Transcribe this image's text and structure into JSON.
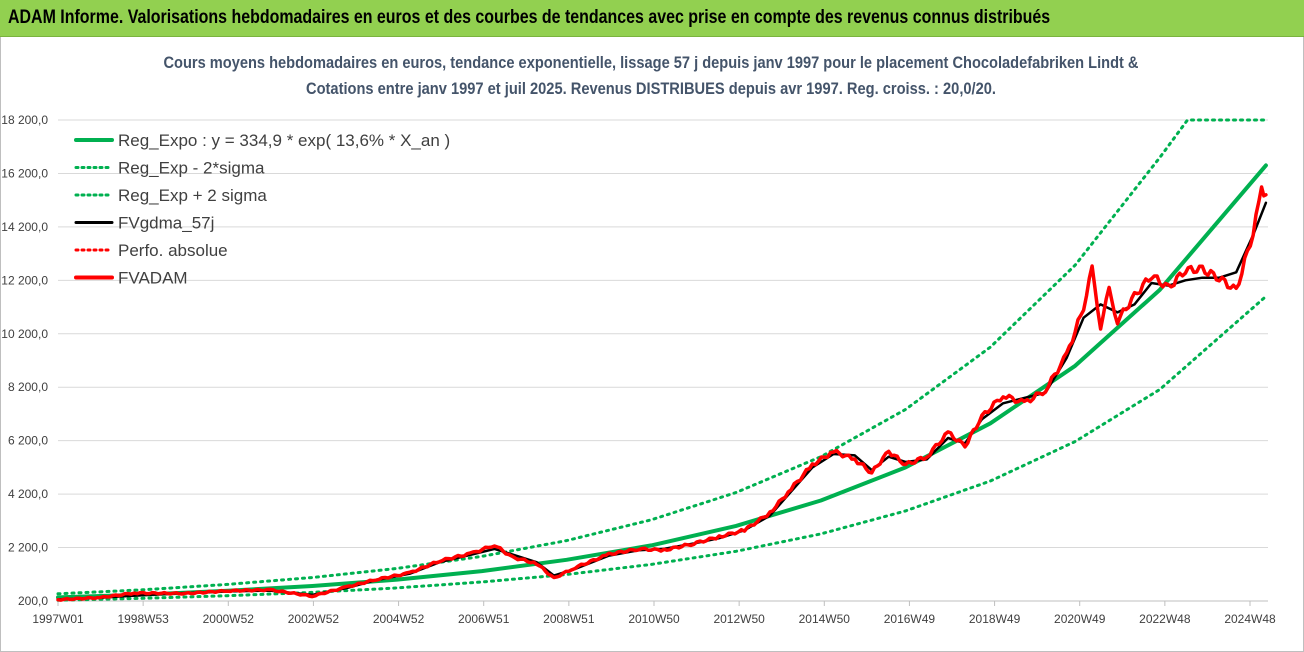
{
  "header": {
    "title": "ADAM Informe. Valorisations hebdomadaires en euros et des courbes de tendances avec prise en compte des revenus connus distribués"
  },
  "colors": {
    "banner": "#92d050",
    "regression": "#00b050",
    "sigma_bands": "#00b050",
    "fvgdma": "#000000",
    "fvadam": "#ff0000",
    "perfo": "#ff0000"
  },
  "chart_data": {
    "type": "line",
    "subtitle_line1": "Cours moyens hebdomadaires en euros, tendance exponentielle, lissage 57 j depuis janv 1997  pour le placement Chocoladefabriken Lindt &",
    "subtitle_line2": "Cotations entre janv 1997 et juil 2025. Revenus DISTRIBUES depuis avr 1997. Reg. croiss. : 20,0/20.",
    "y_ticks": [
      "200,0",
      "2 200,0",
      "4 200,0",
      "6 200,0",
      "8 200,0",
      "10 200,0",
      "12 200,0",
      "14 200,0",
      "16 200,0",
      "18 200,0"
    ],
    "x_ticks": [
      "1997W01",
      "1998W53",
      "2000W52",
      "2002W52",
      "2004W52",
      "2006W51",
      "2008W51",
      "2010W50",
      "2012W50",
      "2014W50",
      "2016W49",
      "2018W49",
      "2020W49",
      "2022W48",
      "2024W48"
    ],
    "ylim": [
      200,
      18200
    ],
    "x_range_years": [
      1997.0,
      2025.55
    ],
    "grid": "horizontal",
    "legend_position": "top-left",
    "legend": [
      {
        "label": "Reg_Expo : y = 334,9 * exp( 13,6% *  X_an )",
        "style": "solid-thick",
        "color": "#00b050"
      },
      {
        "label": "Reg_Exp - 2*sigma",
        "style": "dotted",
        "color": "#00b050"
      },
      {
        "label": "Reg_Exp + 2 sigma",
        "style": "dotted",
        "color": "#00b050"
      },
      {
        "label": "FVgdma_57j",
        "style": "solid",
        "color": "#000000"
      },
      {
        "label": "Perfo. absolue",
        "style": "dotted",
        "color": "#ff0000"
      },
      {
        "label": "FVADAM",
        "style": "solid-thick",
        "color": "#ff0000"
      }
    ],
    "series": [
      {
        "name": "Reg_Expo : y = 334,9 * exp( 13,6% *  X_an )",
        "x": [
          1997,
          1999,
          2001,
          2003,
          2005,
          2007,
          2009,
          2011,
          2013,
          2015,
          2017,
          2019,
          2021,
          2023,
          2025.5
        ],
        "values": [
          335,
          440,
          580,
          760,
          1000,
          1320,
          1740,
          2280,
          3010,
          3960,
          5200,
          6850,
          9000,
          11850,
          16500
        ]
      },
      {
        "name": "Reg_Exp - 2*sigma",
        "x": [
          1997,
          1999,
          2001,
          2003,
          2005,
          2007,
          2009,
          2011,
          2013,
          2015,
          2017,
          2019,
          2021,
          2023,
          2025.5
        ],
        "values": [
          230,
          300,
          400,
          520,
          690,
          910,
          1190,
          1570,
          2060,
          2710,
          3570,
          4690,
          6170,
          8120,
          11600
        ]
      },
      {
        "name": "Reg_Exp + 2 sigma",
        "x": [
          1997,
          1999,
          2001,
          2003,
          2005,
          2007,
          2009,
          2011,
          2013,
          2015,
          2017,
          2019,
          2021,
          2023,
          2023.65,
          2025.5
        ],
        "values": [
          470,
          620,
          820,
          1080,
          1420,
          1870,
          2460,
          3240,
          4260,
          5600,
          7370,
          9700,
          12770,
          16800,
          18200,
          18200
        ]
      },
      {
        "name": "FVgdma_57j",
        "x": [
          1997.0,
          1998.0,
          1999.0,
          2000.0,
          2001.0,
          2002.0,
          2003.0,
          2003.8,
          2004.5,
          2005.3,
          2006.0,
          2006.8,
          2007.3,
          2007.7,
          2008.3,
          2008.7,
          2009.2,
          2010.0,
          2010.7,
          2011.3,
          2012.0,
          2012.6,
          2013.2,
          2013.8,
          2014.3,
          2014.8,
          2015.3,
          2015.8,
          2016.2,
          2016.6,
          2017.0,
          2017.5,
          2018.0,
          2018.4,
          2018.8,
          2019.3,
          2019.8,
          2020.3,
          2020.8,
          2021.2,
          2021.6,
          2022.0,
          2022.4,
          2022.8,
          2023.2,
          2023.6,
          2024.0,
          2024.4,
          2024.8,
          2025.2,
          2025.5
        ],
        "values": [
          260,
          320,
          420,
          500,
          560,
          590,
          430,
          680,
          980,
          1220,
          1650,
          1950,
          2150,
          1950,
          1650,
          1150,
          1400,
          1900,
          2100,
          2150,
          2350,
          2550,
          2850,
          3400,
          4300,
          5200,
          5700,
          5650,
          5100,
          5600,
          5400,
          5500,
          6300,
          6100,
          7000,
          7600,
          7800,
          8000,
          9300,
          10800,
          11300,
          11000,
          11300,
          12100,
          12000,
          12200,
          12300,
          12300,
          12500,
          13900,
          15100
        ]
      },
      {
        "name": "FVADAM",
        "x": [
          1997.0,
          1998.0,
          1998.8,
          2000.0,
          2001.0,
          2002.0,
          2003.0,
          2003.8,
          2004.5,
          2005.3,
          2006.0,
          2006.8,
          2007.3,
          2007.7,
          2008.3,
          2008.7,
          2009.2,
          2010.0,
          2010.7,
          2011.3,
          2012.0,
          2012.6,
          2013.2,
          2013.8,
          2014.3,
          2014.8,
          2015.3,
          2015.8,
          2016.2,
          2016.6,
          2017.0,
          2017.5,
          2018.0,
          2018.4,
          2018.8,
          2019.3,
          2019.8,
          2020.3,
          2020.8,
          2021.2,
          2021.4,
          2021.6,
          2021.8,
          2022.0,
          2022.4,
          2022.8,
          2023.2,
          2023.6,
          2024.0,
          2024.4,
          2024.8,
          2025.2,
          2025.4,
          2025.5
        ],
        "values": [
          250,
          330,
          500,
          480,
          580,
          620,
          380,
          720,
          1000,
          1250,
          1700,
          2000,
          2300,
          1850,
          1600,
          1050,
          1450,
          1950,
          2150,
          2100,
          2350,
          2600,
          2850,
          3500,
          4400,
          5300,
          5800,
          5500,
          5000,
          5800,
          5300,
          5600,
          6500,
          6000,
          7100,
          7900,
          7600,
          8100,
          9400,
          11200,
          12600,
          10500,
          11800,
          10700,
          11600,
          12400,
          11900,
          12600,
          12600,
          12300,
          11800,
          14000,
          15600,
          15400
        ]
      }
    ]
  }
}
